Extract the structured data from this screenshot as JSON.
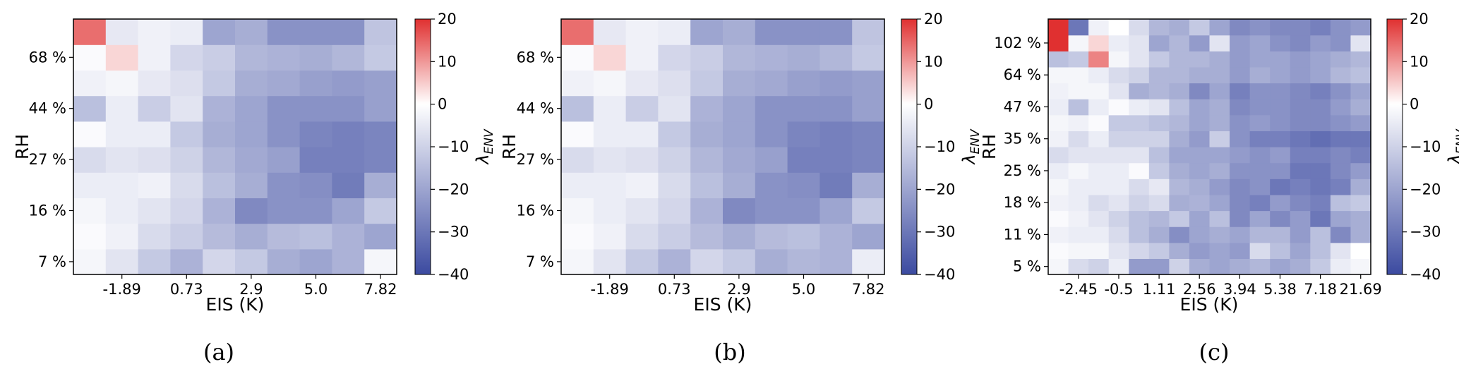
{
  "colorbar": {
    "ticks": [
      20,
      10,
      0,
      -10,
      -20,
      -30,
      -40
    ],
    "tick_labels": [
      "20",
      "10",
      "0",
      "−10",
      "−20",
      "−30",
      "−40"
    ],
    "label": "λ",
    "label_sub": "ENV",
    "vmin": -40,
    "vmax": 20,
    "cmap": {
      "low": "#3b4aa0",
      "mid": "#ffffff",
      "high": "#e03030"
    }
  },
  "chart_data": [
    {
      "type": "heatmap",
      "caption": "(a)",
      "xlabel": "EIS (K)",
      "ylabel": "RH",
      "xticklabels": [
        "-1.89",
        "0.73",
        "2.9",
        "5.0",
        "7.82"
      ],
      "yticklabels": [
        "7 %",
        "16 %",
        "27 %",
        "44 %",
        "68 %"
      ],
      "z": [
        [
          -2,
          -6,
          -12,
          -17,
          -9,
          -12,
          -18,
          -20,
          -17,
          -2
        ],
        [
          -1,
          -3,
          -8,
          -11,
          -15,
          -18,
          -15,
          -14,
          -17,
          -20
        ],
        [
          -2,
          -4,
          -6,
          -9,
          -17,
          -26,
          -24,
          -24,
          -20,
          -12
        ],
        [
          -4,
          -4,
          -3,
          -8,
          -14,
          -18,
          -24,
          -25,
          -29,
          -18
        ],
        [
          -8,
          -6,
          -7,
          -10,
          -16,
          -19,
          -21,
          -28,
          -28,
          -27
        ],
        [
          -1,
          -4,
          -4,
          -12,
          -18,
          -20,
          -24,
          -27,
          -28,
          -27
        ],
        [
          -14,
          -4,
          -11,
          -6,
          -17,
          -20,
          -24,
          -24,
          -24,
          -21
        ],
        [
          -3,
          -2,
          -5,
          -7,
          -12,
          -18,
          -19,
          -21,
          -22,
          -21
        ],
        [
          -1,
          4,
          -3,
          -9,
          -11,
          -16,
          -17,
          -18,
          -16,
          -12
        ],
        [
          14,
          -5,
          -3,
          -4,
          -20,
          -18,
          -24,
          -24,
          -24,
          -13
        ]
      ]
    },
    {
      "type": "heatmap",
      "caption": "(b)",
      "xlabel": "EIS (K)",
      "ylabel": "RH",
      "xticklabels": [
        "-1.89",
        "0.73",
        "2.9",
        "5.0",
        "7.82"
      ],
      "yticklabels": [
        "7 %",
        "16 %",
        "27 %",
        "44 %",
        "68 %"
      ],
      "z": [
        [
          -2,
          -6,
          -12,
          -17,
          -9,
          -12,
          -18,
          -16,
          -17,
          -4
        ],
        [
          -1,
          -3,
          -8,
          -11,
          -15,
          -18,
          -15,
          -14,
          -17,
          -20
        ],
        [
          -2,
          -4,
          -6,
          -9,
          -17,
          -26,
          -24,
          -24,
          -20,
          -12
        ],
        [
          -4,
          -4,
          -3,
          -8,
          -14,
          -18,
          -24,
          -25,
          -29,
          -18
        ],
        [
          -8,
          -6,
          -7,
          -10,
          -16,
          -19,
          -21,
          -28,
          -28,
          -27
        ],
        [
          -1,
          -4,
          -4,
          -12,
          -18,
          -20,
          -24,
          -27,
          -28,
          -27
        ],
        [
          -14,
          -4,
          -11,
          -6,
          -17,
          -20,
          -24,
          -24,
          -24,
          -21
        ],
        [
          -3,
          -2,
          -5,
          -7,
          -12,
          -18,
          -19,
          -21,
          -22,
          -21
        ],
        [
          -1,
          4,
          -3,
          -9,
          -11,
          -16,
          -17,
          -18,
          -16,
          -12
        ],
        [
          14,
          -5,
          -3,
          -4,
          -20,
          -18,
          -24,
          -24,
          -24,
          -13
        ]
      ]
    },
    {
      "type": "heatmap",
      "caption": "(c)",
      "xlabel": "EIS (K)",
      "ylabel": "RH",
      "xticklabels": [
        "-2.45",
        "-0.5",
        "1.11",
        "2.56",
        "3.94",
        "5.38",
        "7.18",
        "21.69"
      ],
      "yticklabels": [
        "5 %",
        "11 %",
        "18 %",
        "25 %",
        "35 %",
        "47 %",
        "64 %",
        "102 %"
      ],
      "z": [
        [
          -2,
          -8,
          -10,
          -4,
          -22,
          -22,
          -10,
          -18,
          -20,
          -18,
          -16,
          -20,
          -18,
          -12,
          -4,
          -2
        ],
        [
          -1,
          -2,
          -2,
          -6,
          -9,
          -12,
          -18,
          -22,
          -20,
          -22,
          -8,
          -14,
          -20,
          -14,
          -6,
          0
        ],
        [
          -3,
          -4,
          -4,
          -8,
          -14,
          -18,
          -25,
          -20,
          -18,
          -20,
          -16,
          -16,
          -22,
          -14,
          -26,
          -18
        ],
        [
          -1,
          -3,
          -6,
          -10,
          -14,
          -16,
          -12,
          -20,
          -14,
          -26,
          -20,
          -26,
          -22,
          -30,
          -20,
          -18
        ],
        [
          -3,
          -4,
          -8,
          -6,
          -10,
          -8,
          -18,
          -17,
          -20,
          -26,
          -28,
          -22,
          -26,
          -28,
          -14,
          -12
        ],
        [
          -2,
          -4,
          -4,
          -4,
          -8,
          -5,
          -16,
          -18,
          -22,
          -26,
          -24,
          -30,
          -28,
          -30,
          -28,
          -18
        ],
        [
          -4,
          -2,
          -4,
          -4,
          -1,
          -12,
          -18,
          -20,
          -18,
          -24,
          -24,
          -24,
          -30,
          -30,
          -26,
          -22
        ],
        [
          -8,
          -6,
          -6,
          -6,
          -6,
          -14,
          -20,
          -20,
          -20,
          -22,
          -24,
          -22,
          -28,
          -28,
          -26,
          -28
        ],
        [
          -3,
          -8,
          -4,
          -10,
          -10,
          -10,
          -18,
          -22,
          -11,
          -24,
          -28,
          -28,
          -30,
          -32,
          -30,
          -30
        ],
        [
          -2,
          -3,
          -1,
          -12,
          -12,
          -14,
          -16,
          -20,
          -18,
          -24,
          -22,
          -24,
          -26,
          -26,
          -24,
          -22
        ],
        [
          -4,
          -14,
          -4,
          -1,
          -4,
          -6,
          -14,
          -20,
          -18,
          -26,
          -24,
          -24,
          -26,
          -26,
          -22,
          -18
        ],
        [
          -3,
          -2,
          -2,
          -6,
          -18,
          -16,
          -18,
          -26,
          -20,
          -28,
          -24,
          -24,
          -26,
          -28,
          -24,
          -20
        ],
        [
          -2,
          -2,
          -4,
          -8,
          -10,
          -16,
          -16,
          -18,
          -18,
          -22,
          -18,
          -20,
          -22,
          -20,
          -16,
          -14
        ],
        [
          -14,
          -12,
          12,
          -2,
          -6,
          -12,
          -16,
          -16,
          -18,
          -22,
          -20,
          -20,
          -22,
          -20,
          -18,
          -16
        ],
        [
          26,
          -2,
          4,
          -4,
          -6,
          -20,
          -16,
          -22,
          -6,
          -22,
          -20,
          -24,
          -26,
          -22,
          -24,
          -6
        ],
        [
          30,
          -30,
          -3,
          0,
          -8,
          -16,
          -18,
          -12,
          -20,
          -26,
          -24,
          -26,
          -26,
          -28,
          -24,
          -22
        ]
      ]
    }
  ]
}
